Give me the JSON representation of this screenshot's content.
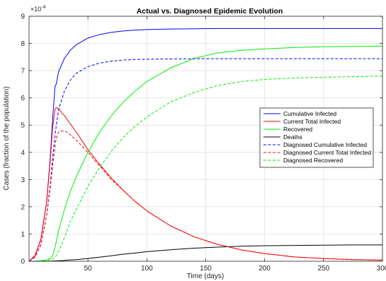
{
  "chart_data": {
    "type": "line",
    "title": "Actual vs. Diagnosed Epidemic Evolution",
    "xlabel": "Time (days)",
    "ylabel": "Cases (fraction of the population)",
    "y_exponent_base": "×10",
    "y_exponent_power": "-4",
    "xlim": [
      0,
      300
    ],
    "ylim": [
      0,
      9
    ],
    "xticks": [
      50,
      100,
      150,
      200,
      250,
      300
    ],
    "yticks": [
      0,
      1,
      2,
      3,
      4,
      5,
      6,
      7,
      8,
      9
    ],
    "grid": true,
    "legend_position": "right",
    "x": [
      0,
      5,
      10,
      15,
      18,
      20,
      22,
      23,
      25,
      30,
      35,
      40,
      50,
      60,
      70,
      80,
      90,
      100,
      120,
      140,
      160,
      180,
      200,
      225,
      250,
      275,
      300
    ],
    "series": [
      {
        "name": "Cumulative Infected",
        "color": "#0000ff",
        "dash": "solid",
        "values": [
          0,
          0.2,
          0.8,
          2.2,
          3.8,
          5.2,
          6.4,
          6.5,
          6.95,
          7.45,
          7.75,
          7.95,
          8.2,
          8.33,
          8.41,
          8.46,
          8.49,
          8.51,
          8.53,
          8.54,
          8.55,
          8.55,
          8.55,
          8.55,
          8.55,
          8.55,
          8.55
        ]
      },
      {
        "name": "Current Total Infected",
        "color": "#ff0000",
        "dash": "solid",
        "values": [
          0,
          0.2,
          0.8,
          2.2,
          3.7,
          4.9,
          5.55,
          5.65,
          5.6,
          5.35,
          5.05,
          4.75,
          4.1,
          3.55,
          3.05,
          2.6,
          2.2,
          1.85,
          1.3,
          0.9,
          0.62,
          0.42,
          0.28,
          0.16,
          0.1,
          0.06,
          0.04
        ]
      },
      {
        "name": "Recovered",
        "color": "#00ee00",
        "dash": "solid",
        "values": [
          0,
          0,
          0.02,
          0.05,
          0.1,
          0.2,
          0.5,
          0.7,
          1.1,
          1.9,
          2.55,
          3.1,
          4.0,
          4.75,
          5.35,
          5.85,
          6.25,
          6.6,
          7.1,
          7.45,
          7.65,
          7.75,
          7.8,
          7.85,
          7.88,
          7.89,
          7.9
        ]
      },
      {
        "name": "Deaths",
        "color": "#000000",
        "dash": "solid",
        "values": [
          0,
          0,
          0,
          0,
          0,
          0.01,
          0.01,
          0.01,
          0.02,
          0.03,
          0.05,
          0.06,
          0.1,
          0.15,
          0.2,
          0.26,
          0.3,
          0.35,
          0.42,
          0.48,
          0.52,
          0.55,
          0.57,
          0.58,
          0.59,
          0.6,
          0.6
        ]
      },
      {
        "name": "Diagnosed Cumulative Infected",
        "color": "#0000ff",
        "dash": "dashed",
        "values": [
          0,
          0.15,
          0.6,
          1.7,
          2.8,
          3.8,
          4.6,
          4.95,
          5.55,
          6.25,
          6.65,
          6.9,
          7.15,
          7.28,
          7.35,
          7.39,
          7.41,
          7.42,
          7.43,
          7.44,
          7.44,
          7.44,
          7.44,
          7.44,
          7.44,
          7.44,
          7.44
        ]
      },
      {
        "name": "Diagnosed Current Total Infected",
        "color": "#ff0000",
        "dash": "dashed",
        "values": [
          0,
          0.15,
          0.6,
          1.7,
          2.7,
          3.5,
          4.2,
          4.5,
          4.75,
          4.8,
          4.65,
          4.45,
          4.0,
          3.5,
          3.0,
          2.6,
          2.2,
          1.85,
          1.3,
          0.9,
          0.62,
          0.42,
          0.28,
          0.16,
          0.1,
          0.06,
          0.04
        ]
      },
      {
        "name": "Diagnosed Recovered",
        "color": "#00ee00",
        "dash": "dashed",
        "values": [
          0,
          0,
          0,
          0.02,
          0.05,
          0.08,
          0.15,
          0.2,
          0.35,
          0.85,
          1.45,
          1.9,
          2.75,
          3.45,
          4.05,
          4.55,
          4.95,
          5.3,
          5.85,
          6.2,
          6.45,
          6.6,
          6.68,
          6.73,
          6.76,
          6.78,
          6.8
        ]
      }
    ]
  }
}
